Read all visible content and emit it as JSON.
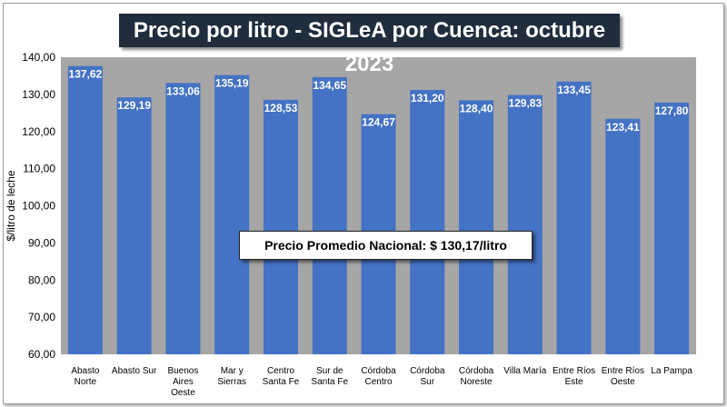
{
  "chart_data": {
    "type": "bar",
    "title": "Precio por litro - SIGLeA por Cuenca: octubre 2023",
    "ylabel": "$/litro de leche",
    "xlabel": "",
    "ylim": [
      60,
      140
    ],
    "yticks": [
      "60,00",
      "70,00",
      "80,00",
      "90,00",
      "100,00",
      "110,00",
      "120,00",
      "130,00",
      "140,00"
    ],
    "categories": [
      [
        "Abasto",
        "Norte"
      ],
      [
        "Abasto Sur"
      ],
      [
        "Buenos",
        "Aires",
        "Oeste"
      ],
      [
        "Mar y",
        "Sierras"
      ],
      [
        "Centro",
        "Santa Fe"
      ],
      [
        "Sur de",
        "Santa Fe"
      ],
      [
        "Córdoba",
        "Centro"
      ],
      [
        "Córdoba",
        "Sur"
      ],
      [
        "Córdoba",
        "Noreste"
      ],
      [
        "Villa María"
      ],
      [
        "Entre Ríos",
        "Este"
      ],
      [
        "Entre Ríos",
        "Oeste"
      ],
      [
        "La Pampa"
      ]
    ],
    "values": [
      137.62,
      129.19,
      133.06,
      135.19,
      128.53,
      134.65,
      124.67,
      131.2,
      128.4,
      129.83,
      133.45,
      123.41,
      127.8
    ],
    "value_labels": [
      "137,62",
      "129,19",
      "133,06",
      "135,19",
      "128,53",
      "134,65",
      "124,67",
      "131,20",
      "128,40",
      "129,83",
      "133,45",
      "123,41",
      "127,80"
    ],
    "annotation": "Precio Promedio Nacional: $ 130,17/litro",
    "grid": false,
    "colors": {
      "bar": "#4472c4",
      "background": "#a6a6a6"
    }
  }
}
